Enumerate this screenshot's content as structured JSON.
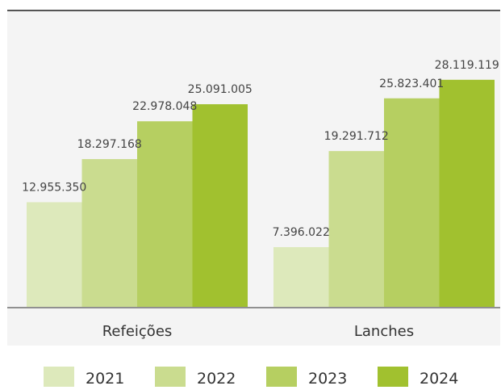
{
  "chart_data": {
    "type": "bar",
    "categories": [
      "Refeições",
      "Lanches"
    ],
    "series": [
      {
        "name": "2021",
        "color": "#dde9bb",
        "values": [
          12955350,
          7396022
        ],
        "labels": [
          "12.955.350",
          "7.396.022"
        ]
      },
      {
        "name": "2022",
        "color": "#cadc8f",
        "values": [
          18297168,
          19291712
        ],
        "labels": [
          "18.297.168",
          "19.291.712"
        ]
      },
      {
        "name": "2023",
        "color": "#b6cf61",
        "values": [
          22978048,
          25823401
        ],
        "labels": [
          "22.978.048",
          "25.823.401"
        ]
      },
      {
        "name": "2024",
        "color": "#a1c12f",
        "values": [
          25091005,
          28119119
        ],
        "labels": [
          "25.091.005",
          "28.119.119"
        ]
      }
    ],
    "ylim": [
      0,
      30000000
    ],
    "grid": false,
    "legend": "bottom",
    "title": "",
    "xlabel": "",
    "ylabel": ""
  }
}
